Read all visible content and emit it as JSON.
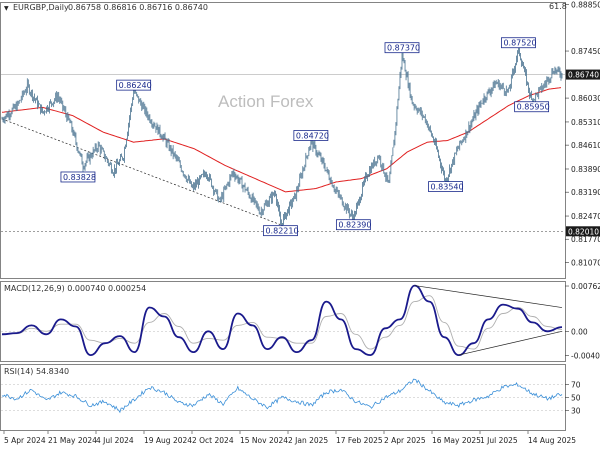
{
  "header": {
    "symbol": "EURGBP,Daily",
    "ohlc": "0.86758 0.86816 0.86716 0.86740",
    "corner": "61.8"
  },
  "watermark": "Action Forex",
  "colors": {
    "candle": "#4a7390",
    "ma": "#e02020",
    "macd": "#1a1a8c",
    "signal": "#b0b0b0",
    "rsi": "#3a8fd8",
    "current_tag": "#1a1a1a",
    "support_tag": "#1a1a1a",
    "label_border": "#1a2a8c"
  },
  "chart_data": [
    {
      "type": "candlestick",
      "title": "EURGBP,Daily",
      "ylim": [
        0.806,
        0.889
      ],
      "y_ticks": [
        "0.88850",
        "0.87450",
        "0.86030",
        "0.85310",
        "0.84610",
        "0.83890",
        "0.83190",
        "0.82470",
        "0.81770",
        "0.81070"
      ],
      "x_ticks": [
        "5 Apr 2024",
        "21 May 2024",
        "4 Jul 2024",
        "19 Aug 2024",
        "2 Oct 2024",
        "15 Nov 2024",
        "2 Jan 2025",
        "17 Feb 2025",
        "2 Apr 2025",
        "16 May 2025",
        "1 Jul 2025",
        "14 Aug 2025"
      ],
      "current_price": "0.86740",
      "current_level": 0.8674,
      "support_level": 0.8201,
      "support_label": "0.82010",
      "annotations": [
        {
          "text": "0.86240",
          "price": 0.8624,
          "bar": 130
        },
        {
          "text": "0.83828",
          "price": 0.8383,
          "bar": 75
        },
        {
          "text": "0.84720",
          "price": 0.8472,
          "bar": 305
        },
        {
          "text": "0.82210",
          "price": 0.8221,
          "bar": 275
        },
        {
          "text": "0.82390",
          "price": 0.8239,
          "bar": 347
        },
        {
          "text": "0.87370",
          "price": 0.8737,
          "bar": 395
        },
        {
          "text": "0.83540",
          "price": 0.8354,
          "bar": 438
        },
        {
          "text": "0.87520",
          "price": 0.8752,
          "bar": 510
        },
        {
          "text": "0.85950",
          "price": 0.8595,
          "bar": 523
        }
      ],
      "price_path": [
        [
          0,
          0.854
        ],
        [
          15,
          0.858
        ],
        [
          25,
          0.864
        ],
        [
          40,
          0.856
        ],
        [
          55,
          0.861
        ],
        [
          68,
          0.852
        ],
        [
          80,
          0.84
        ],
        [
          95,
          0.846
        ],
        [
          110,
          0.8383
        ],
        [
          120,
          0.843
        ],
        [
          130,
          0.8624
        ],
        [
          142,
          0.856
        ],
        [
          158,
          0.849
        ],
        [
          172,
          0.842
        ],
        [
          188,
          0.833
        ],
        [
          202,
          0.838
        ],
        [
          215,
          0.829
        ],
        [
          228,
          0.838
        ],
        [
          240,
          0.833
        ],
        [
          255,
          0.826
        ],
        [
          270,
          0.832
        ],
        [
          275,
          0.8221
        ],
        [
          290,
          0.831
        ],
        [
          305,
          0.8472
        ],
        [
          318,
          0.84
        ],
        [
          330,
          0.832
        ],
        [
          347,
          0.8239
        ],
        [
          360,
          0.837
        ],
        [
          372,
          0.843
        ],
        [
          382,
          0.834
        ],
        [
          388,
          0.85
        ],
        [
          395,
          0.8737
        ],
        [
          405,
          0.859
        ],
        [
          418,
          0.854
        ],
        [
          428,
          0.846
        ],
        [
          438,
          0.8354
        ],
        [
          450,
          0.845
        ],
        [
          462,
          0.852
        ],
        [
          475,
          0.86
        ],
        [
          488,
          0.865
        ],
        [
          500,
          0.862
        ],
        [
          510,
          0.8752
        ],
        [
          523,
          0.8595
        ],
        [
          535,
          0.864
        ],
        [
          545,
          0.869
        ],
        [
          553,
          0.8674
        ]
      ],
      "ma_path": [
        [
          0,
          0.856
        ],
        [
          40,
          0.8575
        ],
        [
          70,
          0.855
        ],
        [
          100,
          0.85
        ],
        [
          130,
          0.847
        ],
        [
          160,
          0.848
        ],
        [
          190,
          0.845
        ],
        [
          220,
          0.84
        ],
        [
          250,
          0.836
        ],
        [
          280,
          0.832
        ],
        [
          310,
          0.833
        ],
        [
          330,
          0.835
        ],
        [
          355,
          0.836
        ],
        [
          380,
          0.839
        ],
        [
          400,
          0.844
        ],
        [
          420,
          0.847
        ],
        [
          440,
          0.8475
        ],
        [
          460,
          0.85
        ],
        [
          480,
          0.854
        ],
        [
          500,
          0.858
        ],
        [
          520,
          0.861
        ],
        [
          540,
          0.863
        ],
        [
          553,
          0.8635
        ]
      ],
      "trendlines": [
        {
          "from": [
            0,
            0.854
          ],
          "to": [
            275,
            0.8221
          ]
        }
      ]
    },
    {
      "type": "line",
      "title": "MACD(12,26,9) 0.000740 0.000254",
      "ylim": [
        -0.005,
        0.0083
      ],
      "y_ticks": [
        "0.007623",
        "0.00",
        "-0.004073"
      ],
      "series": [
        {
          "name": "MACD",
          "values": [
            -0.0005,
            -0.0003,
            0.001,
            -0.0005,
            0.002,
            0.0008,
            -0.004,
            -0.002,
            -0.0008,
            -0.0035,
            0.004,
            0.0025,
            -0.001,
            -0.0035,
            0.0,
            -0.003,
            0.003,
            0.001,
            -0.003,
            -0.001,
            -0.0035,
            -0.0015,
            0.005,
            0.002,
            -0.003,
            -0.004,
            0.0005,
            0.002,
            0.0077,
            0.005,
            -0.001,
            -0.004,
            -0.002,
            0.002,
            0.0045,
            0.0038,
            0.0015,
            0.0,
            0.0007
          ]
        },
        {
          "name": "Signal",
          "values": [
            -0.0004,
            -0.0004,
            0.0005,
            0.0,
            0.0012,
            0.0012,
            -0.0015,
            -0.002,
            -0.0012,
            -0.002,
            0.0015,
            0.003,
            0.0008,
            -0.002,
            -0.0012,
            -0.0015,
            0.001,
            0.0015,
            -0.001,
            -0.0012,
            -0.002,
            -0.002,
            0.0025,
            0.003,
            -0.0005,
            -0.003,
            -0.001,
            0.001,
            0.005,
            0.006,
            0.0015,
            -0.0025,
            -0.003,
            0.0005,
            0.003,
            0.004,
            0.0025,
            0.0008,
            0.0003
          ]
        }
      ],
      "trendlines": [
        {
          "from": [
            28,
            0.0077
          ],
          "to": [
            38,
            0.004
          ]
        },
        {
          "from": [
            31,
            -0.004
          ],
          "to": [
            38,
            0.0
          ]
        }
      ]
    },
    {
      "type": "line",
      "title": "RSI(14) 54.8340",
      "ylim": [
        0,
        100
      ],
      "y_ticks": [
        "70",
        "50",
        "30"
      ],
      "series": [
        {
          "name": "RSI",
          "values": [
            55,
            48,
            62,
            45,
            58,
            52,
            38,
            44,
            30,
            47,
            66,
            58,
            42,
            38,
            55,
            40,
            64,
            48,
            35,
            50,
            44,
            38,
            58,
            62,
            44,
            35,
            50,
            60,
            78,
            60,
            42,
            38,
            46,
            52,
            66,
            70,
            56,
            48,
            55
          ]
        }
      ]
    }
  ]
}
